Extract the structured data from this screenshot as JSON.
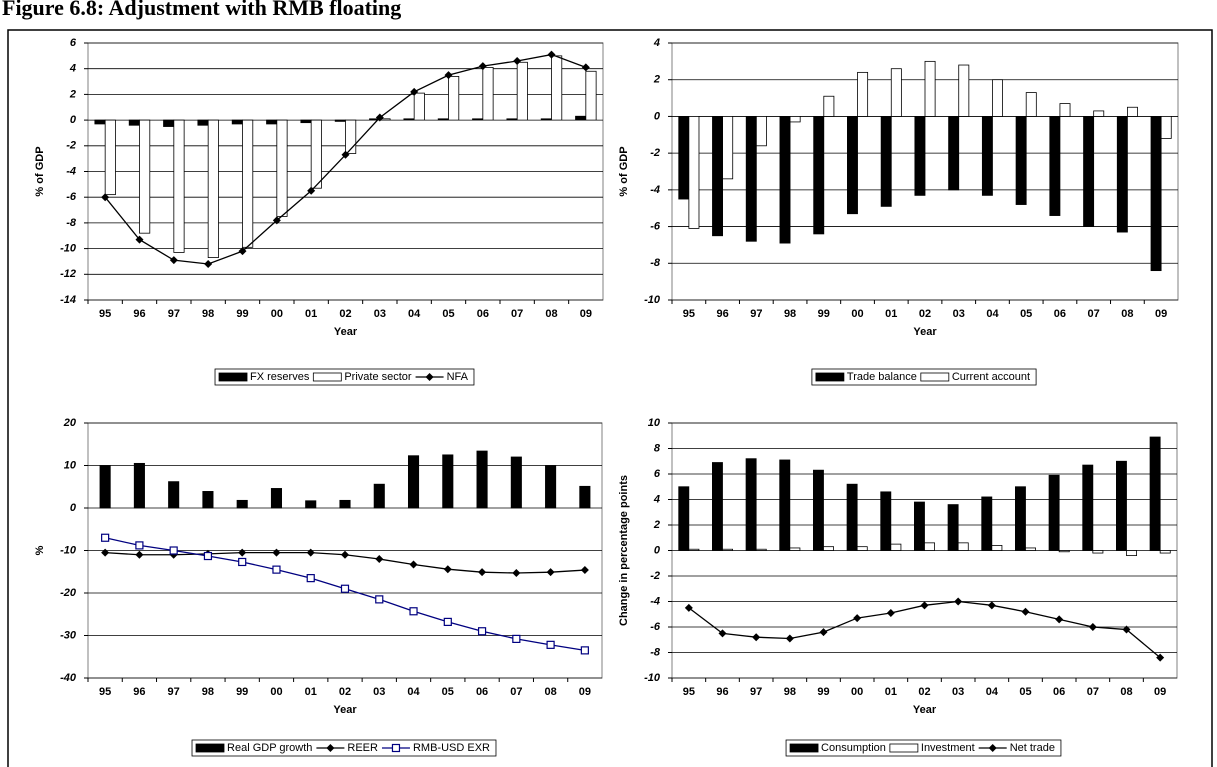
{
  "figure_title": "Figure 6.8: Adjustment with RMB floating",
  "chart_data": [
    {
      "type": "bar",
      "xlabel": "Year",
      "ylabel": "% of GDP",
      "categories": [
        "95",
        "96",
        "97",
        "98",
        "99",
        "00",
        "01",
        "02",
        "03",
        "04",
        "05",
        "06",
        "07",
        "08",
        "09"
      ],
      "ylim": [
        -14,
        6
      ],
      "yticks": [
        -14,
        -12,
        -10,
        -8,
        -6,
        -4,
        -2,
        0,
        2,
        4,
        6
      ],
      "grid": true,
      "series": [
        {
          "name": "FX reserves",
          "type": "bar",
          "color": "#000000",
          "values": [
            -0.3,
            -0.4,
            -0.5,
            -0.4,
            -0.3,
            -0.3,
            -0.2,
            -0.1,
            0.1,
            0.1,
            0.1,
            0.1,
            0.1,
            0.1,
            0.3
          ]
        },
        {
          "name": "Private sector",
          "type": "bar",
          "color": "#ffffff",
          "values": [
            -5.8,
            -8.8,
            -10.3,
            -10.7,
            -9.9,
            -7.5,
            -5.3,
            -2.6,
            0.1,
            2.1,
            3.4,
            4.1,
            4.5,
            5.0,
            3.8
          ]
        },
        {
          "name": "NFA",
          "type": "line",
          "color": "#000000",
          "marker": "diamond",
          "values": [
            -6.0,
            -9.3,
            -10.9,
            -11.2,
            -10.2,
            -7.8,
            -5.5,
            -2.7,
            0.2,
            2.2,
            3.5,
            4.2,
            4.6,
            5.1,
            4.1
          ]
        }
      ]
    },
    {
      "type": "bar",
      "xlabel": "Year",
      "ylabel": "% of GDP",
      "categories": [
        "95",
        "96",
        "97",
        "98",
        "99",
        "00",
        "01",
        "02",
        "03",
        "04",
        "05",
        "06",
        "07",
        "08",
        "09"
      ],
      "ylim": [
        -10,
        4
      ],
      "yticks": [
        -10,
        -8,
        -6,
        -4,
        -2,
        0,
        2,
        4
      ],
      "grid": true,
      "series": [
        {
          "name": "Trade balance",
          "type": "bar",
          "color": "#000000",
          "values": [
            -4.5,
            -6.5,
            -6.8,
            -6.9,
            -6.4,
            -5.3,
            -4.9,
            -4.3,
            -4.0,
            -4.3,
            -4.8,
            -5.4,
            -6.0,
            -6.3,
            -8.4
          ]
        },
        {
          "name": "Current account",
          "type": "bar",
          "color": "#ffffff",
          "values": [
            -6.1,
            -3.4,
            -1.6,
            -0.3,
            1.1,
            2.4,
            2.6,
            3.0,
            2.8,
            2.0,
            1.3,
            0.7,
            0.3,
            0.5,
            -1.2
          ]
        }
      ]
    },
    {
      "type": "bar",
      "xlabel": "Year",
      "ylabel": "%",
      "categories": [
        "95",
        "96",
        "97",
        "98",
        "99",
        "00",
        "01",
        "02",
        "03",
        "04",
        "05",
        "06",
        "07",
        "08",
        "09"
      ],
      "ylim": [
        -40,
        20
      ],
      "yticks": [
        -40,
        -30,
        -20,
        -10,
        0,
        10,
        20
      ],
      "grid": true,
      "series": [
        {
          "name": "Real GDP growth",
          "type": "bar",
          "color": "#000000",
          "values": [
            10,
            10.5,
            6.2,
            3.9,
            1.8,
            4.6,
            1.7,
            1.8,
            5.6,
            12.3,
            12.5,
            13.4,
            12,
            10,
            5.1
          ]
        },
        {
          "name": "REER",
          "type": "line",
          "color": "#000000",
          "marker": "diamond",
          "values": [
            -10.5,
            -11,
            -11,
            -10.8,
            -10.5,
            -10.5,
            -10.5,
            -11,
            -12,
            -13.3,
            -14.4,
            -15.1,
            -15.3,
            -15.1,
            -14.6
          ]
        },
        {
          "name": "RMB-USD EXR",
          "type": "line",
          "color": "#000080",
          "marker": "square",
          "values": [
            -7,
            -8.8,
            -10,
            -11.3,
            -12.7,
            -14.5,
            -16.5,
            -19,
            -21.5,
            -24.3,
            -26.8,
            -29,
            -30.8,
            -32.2,
            -33.5
          ]
        }
      ]
    },
    {
      "type": "bar",
      "xlabel": "Year",
      "ylabel": "Change in percentage points",
      "categories": [
        "95",
        "96",
        "97",
        "98",
        "99",
        "00",
        "01",
        "02",
        "03",
        "04",
        "05",
        "06",
        "07",
        "08",
        "09"
      ],
      "ylim": [
        -10,
        10
      ],
      "yticks": [
        -10,
        -8,
        -6,
        -4,
        -2,
        0,
        2,
        4,
        6,
        8,
        10
      ],
      "grid": true,
      "series": [
        {
          "name": "Consumption",
          "type": "bar",
          "color": "#000000",
          "values": [
            5.0,
            6.9,
            7.2,
            7.1,
            6.3,
            5.2,
            4.6,
            3.8,
            3.6,
            4.2,
            5.0,
            5.9,
            6.7,
            7.0,
            8.9
          ]
        },
        {
          "name": "Investment",
          "type": "bar",
          "color": "#ffffff",
          "values": [
            0.1,
            0.1,
            0.1,
            0.2,
            0.3,
            0.3,
            0.5,
            0.6,
            0.6,
            0.4,
            0.2,
            -0.1,
            -0.2,
            -0.4,
            -0.2
          ]
        },
        {
          "name": "Net trade",
          "type": "line",
          "color": "#000000",
          "marker": "diamond",
          "values": [
            -4.5,
            -6.5,
            -6.8,
            -6.9,
            -6.4,
            -5.3,
            -4.9,
            -4.3,
            -4.0,
            -4.3,
            -4.8,
            -5.4,
            -6.0,
            -6.2,
            -8.4
          ]
        }
      ]
    }
  ]
}
